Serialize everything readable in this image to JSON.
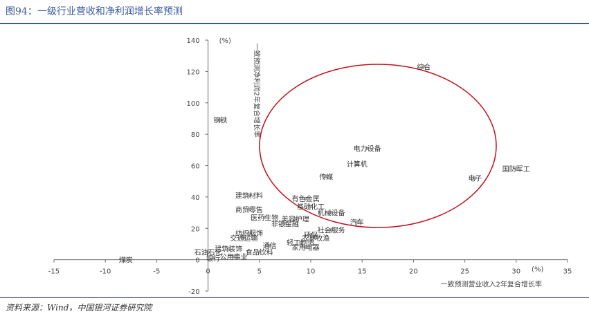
{
  "header": {
    "title": "图94：一级行业营收和净利润增长率预测"
  },
  "footer": {
    "source": "资料来源：Wind，中国银河证券研究院"
  },
  "chart_data": {
    "type": "scatter",
    "xlim": [
      -15,
      35
    ],
    "ylim": [
      -20,
      140
    ],
    "x_ticks": [
      -15,
      -10,
      -5,
      0,
      5,
      10,
      15,
      20,
      25,
      30,
      35
    ],
    "y_ticks": [
      -20,
      0,
      20,
      40,
      60,
      80,
      100,
      120,
      140
    ],
    "x_unit": "(%)",
    "y_unit": "(%)",
    "xlabel": "一致预测营业收入2年复合增长率",
    "ylabel": "一致预测净利润2年复合增长率",
    "grid": false,
    "point_color": "#b3b3b3",
    "annotation_color": "#c0101a",
    "points": [
      {
        "label": "综合",
        "x": 21,
        "y": 123
      },
      {
        "label": "钢铁",
        "x": 1.2,
        "y": 89
      },
      {
        "label": "电力设备",
        "x": 15.5,
        "y": 71
      },
      {
        "label": "计算机",
        "x": 14.5,
        "y": 61
      },
      {
        "label": "国防军工",
        "x": 30,
        "y": 58
      },
      {
        "label": "电子",
        "x": 26,
        "y": 52
      },
      {
        "label": "传媒",
        "x": 11.5,
        "y": 53
      },
      {
        "label": "建筑材料",
        "x": 4,
        "y": 41
      },
      {
        "label": "有色金属",
        "x": 9.5,
        "y": 39
      },
      {
        "label": "基础化工",
        "x": 10,
        "y": 34
      },
      {
        "label": "商贸零售",
        "x": 4,
        "y": 32
      },
      {
        "label": "机械设备",
        "x": 12,
        "y": 30
      },
      {
        "label": "医药生物",
        "x": 5.5,
        "y": 27
      },
      {
        "label": "美容护理",
        "x": 8.5,
        "y": 26
      },
      {
        "label": "汽车",
        "x": 14.5,
        "y": 24
      },
      {
        "label": "非银金融",
        "x": 7.5,
        "y": 23
      },
      {
        "label": "纺织服饰",
        "x": 4,
        "y": 17
      },
      {
        "label": "社会服务",
        "x": 12,
        "y": 19
      },
      {
        "label": "环保",
        "x": 10,
        "y": 16
      },
      {
        "label": "交通运输",
        "x": 3.5,
        "y": 14
      },
      {
        "label": "农林牧渔",
        "x": 10.5,
        "y": 14
      },
      {
        "label": "轻工制造",
        "x": 9,
        "y": 11
      },
      {
        "label": "通信",
        "x": 6,
        "y": 9
      },
      {
        "label": "家用电器",
        "x": 9.5,
        "y": 8
      },
      {
        "label": "建筑装饰",
        "x": 2,
        "y": 7
      },
      {
        "label": "石油石化",
        "x": 0,
        "y": 5
      },
      {
        "label": "食品饮料",
        "x": 5,
        "y": 5
      },
      {
        "label": "银行",
        "x": 0.5,
        "y": 1
      },
      {
        "label": "公用事业",
        "x": 2.5,
        "y": 2
      },
      {
        "label": "煤炭",
        "x": -8,
        "y": 0
      }
    ]
  }
}
